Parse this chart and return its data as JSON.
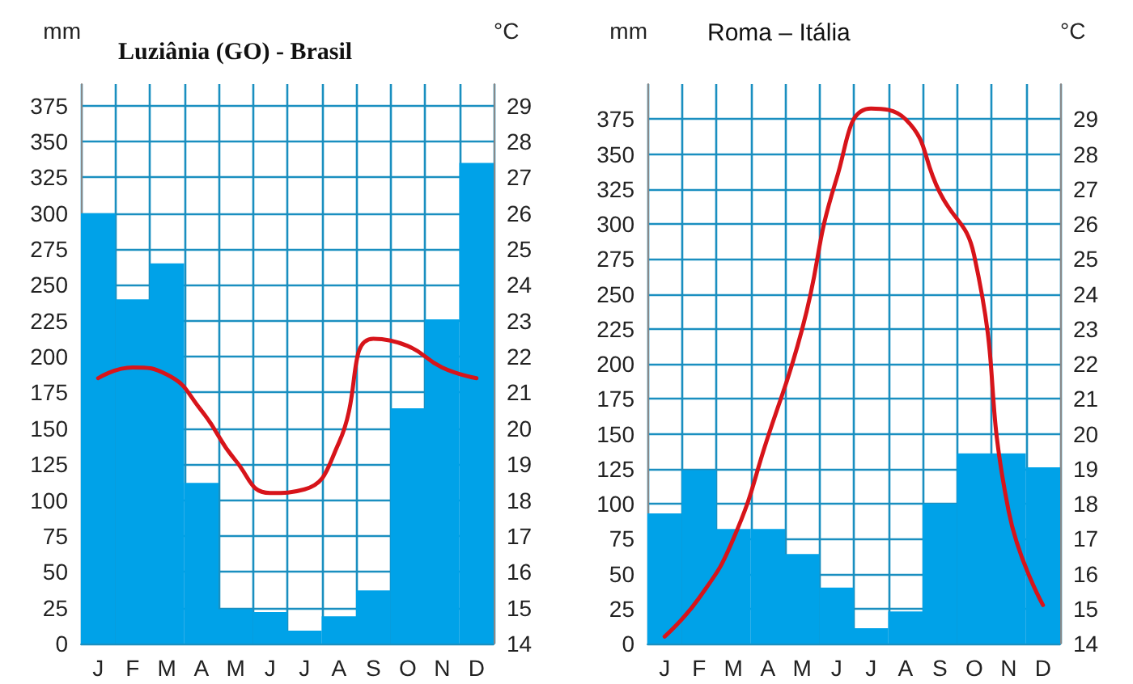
{
  "chart_data": [
    {
      "type": "bar",
      "title": "Luziânia (GO) - Brasil",
      "ylabel": "mm",
      "y2label": "°C",
      "categories": [
        "J",
        "F",
        "M",
        "A",
        "M",
        "J",
        "J",
        "A",
        "S",
        "O",
        "N",
        "D"
      ],
      "series": [
        {
          "color": "#00a2e8",
          "values": [
            300,
            240,
            265,
            112,
            24,
            22,
            9,
            19,
            37,
            164,
            226,
            335
          ]
        },
        {
          "type": "line",
          "axis": "y2",
          "color": "#d7141a",
          "values": [
            21.4,
            21.7,
            21.5,
            20.5,
            19.1,
            18.2,
            18.3,
            19.6,
            22.5,
            22.3,
            21.7,
            21.4
          ]
        }
      ],
      "ylim": [
        0,
        390
      ],
      "yticks": [
        0,
        25,
        50,
        75,
        100,
        125,
        150,
        175,
        200,
        225,
        250,
        275,
        300,
        325,
        350,
        375
      ],
      "y2lim": [
        14,
        29.6
      ],
      "y2ticks": [
        14,
        15,
        16,
        17,
        18,
        19,
        20,
        21,
        22,
        23,
        24,
        25,
        26,
        27,
        28,
        29
      ],
      "grid": true,
      "marker": "none",
      "line_style": "solid"
    },
    {
      "type": "bar",
      "title": "Roma – Itália",
      "ylabel": "mm",
      "y2label": "°C",
      "categories": [
        "J",
        "F",
        "M",
        "A",
        "M",
        "J",
        "J",
        "A",
        "S",
        "O",
        "N",
        "D"
      ],
      "series": [
        {
          "color": "#00a2e8",
          "values": [
            93,
            124,
            82,
            82,
            64,
            40,
            11,
            23,
            100,
            136,
            136,
            126
          ]
        },
        {
          "type": "line",
          "axis": "y2",
          "color": "#d7141a",
          "values": [
            14.2,
            15.3,
            17.0,
            19.9,
            23.0,
            27.3,
            29.3,
            29.0,
            26.9,
            25.1,
            17.8,
            15.1
          ]
        }
      ],
      "ylim": [
        0,
        400
      ],
      "yticks": [
        0,
        25,
        50,
        75,
        100,
        125,
        150,
        175,
        200,
        225,
        250,
        275,
        300,
        325,
        350,
        375
      ],
      "y2lim": [
        14,
        30
      ],
      "y2ticks": [
        14,
        15,
        16,
        17,
        18,
        19,
        20,
        21,
        22,
        23,
        24,
        25,
        26,
        27,
        28,
        29
      ],
      "grid": true,
      "marker": "none",
      "line_style": "solid"
    }
  ]
}
